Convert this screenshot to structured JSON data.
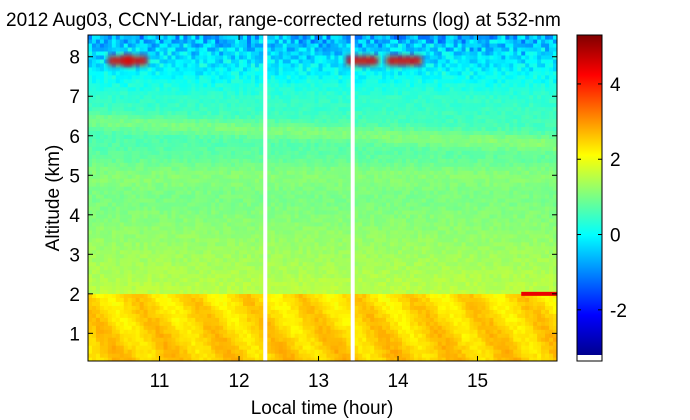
{
  "chart_data": {
    "type": "heatmap",
    "title": "2012 Aug03, CCNY-Lidar, range-corrected returns (log) at 532-nm",
    "xlabel": "Local time (hour)",
    "ylabel": "Altitude (km)",
    "xlim": [
      10.1,
      16.0
    ],
    "ylim": [
      0.3,
      8.55
    ],
    "x_ticks": [
      "11",
      "12",
      "13",
      "14",
      "15"
    ],
    "y_ticks": [
      "1",
      "2",
      "3",
      "4",
      "5",
      "6",
      "7",
      "8"
    ],
    "colorbar": {
      "range": [
        -3.2,
        5.3
      ],
      "ticks": [
        "-2",
        "0",
        "2",
        "4"
      ],
      "colormap": "jet"
    },
    "data_gaps_hours": [
      12.33,
      13.43
    ],
    "features": [
      {
        "layer": "boundary-layer aerosol",
        "top_km": 2.0,
        "value": 2.6
      },
      {
        "layer": "residual aerosol",
        "altitude_km": 5.0,
        "value": 1.2
      },
      {
        "layer": "descending plume",
        "start_km": 6.4,
        "end_km": 5.8,
        "value": 1.4
      },
      {
        "layer": "cirrus cloud",
        "altitude_km": 7.9,
        "value": 4.5
      },
      {
        "layer": "low cloud at end",
        "altitude_km": 2.0,
        "value": 4.4
      }
    ]
  },
  "colors": {
    "background": "#ffffff",
    "axis": "#000000",
    "gap": "#ffffff"
  }
}
